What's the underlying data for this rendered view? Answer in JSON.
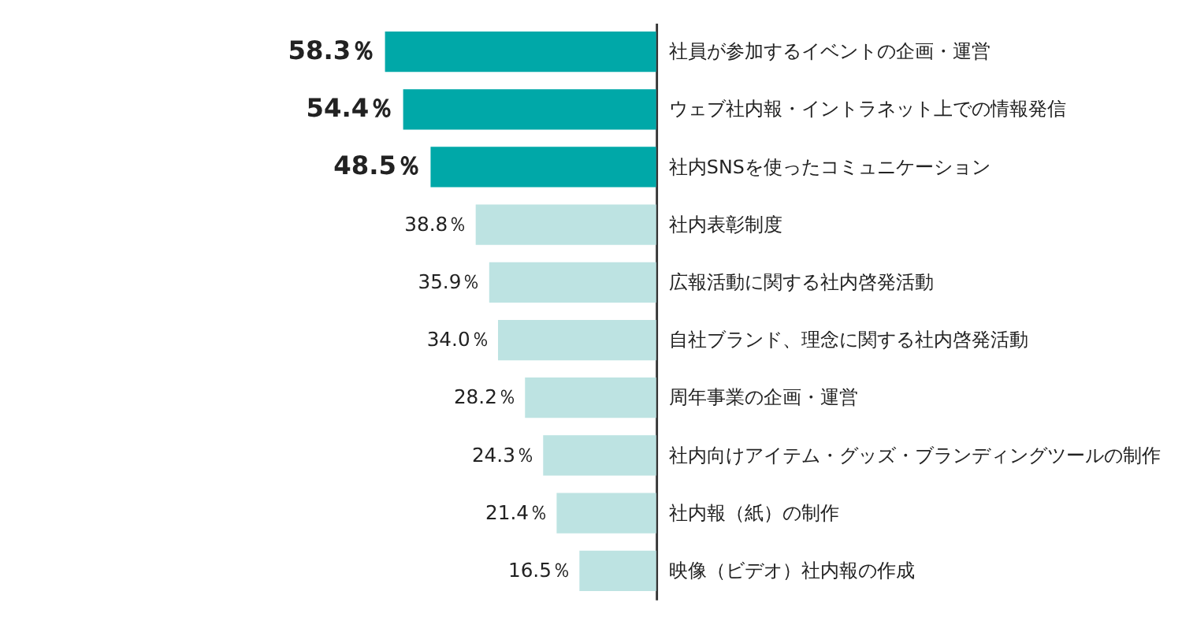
{
  "chart_data": {
    "type": "bar",
    "orientation": "horizontal",
    "categories": [
      "社員が参加するイベントの企画・運営",
      "ウェブ社内報・イントラネット上での情報発信",
      "社内SNSを使ったコミュニケーション",
      "社内表彰制度",
      "広報活動に関する社内啓発活動",
      "自社ブランド、理念に関する社内啓発活動",
      "周年事業の企画・運営",
      "社内向けアイテム・グッズ・ブランディングツールの制作",
      "社内報（紙）の制作",
      "映像（ビデオ）社内報の作成"
    ],
    "values": [
      58.3,
      54.4,
      48.5,
      38.8,
      35.9,
      34.0,
      28.2,
      24.3,
      21.4,
      16.5
    ],
    "colors": [
      "#00a8a8",
      "#00a8a8",
      "#00a8a8",
      "#bde3e2",
      "#bde3e2",
      "#bde3e2",
      "#bde3e2",
      "#bde3e2",
      "#bde3e2",
      "#bde3e2"
    ],
    "value_labels": [
      "58.3％",
      "54.4％",
      "48.5％",
      "38.8％",
      "35.9％",
      "34.0％",
      "28.2％",
      "24.3％",
      "21.4％",
      "16.5％"
    ]
  }
}
